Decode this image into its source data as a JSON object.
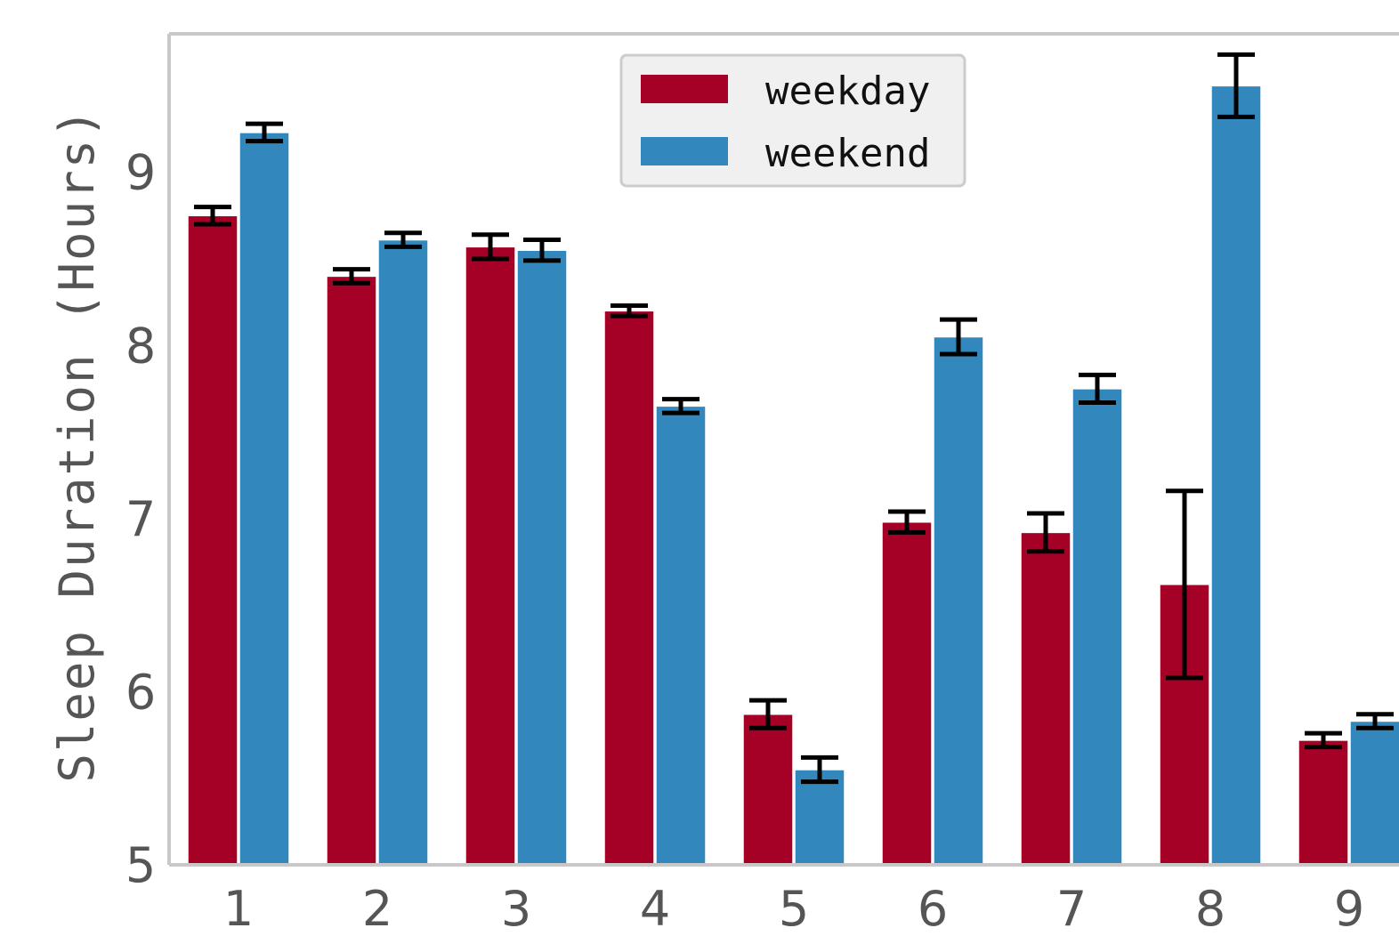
{
  "chart_data": {
    "type": "bar",
    "title": "",
    "xlabel": "",
    "ylabel": "Sleep Duration (Hours)",
    "categories": [
      "1",
      "2",
      "3",
      "4",
      "5",
      "6",
      "7",
      "8",
      "9"
    ],
    "yticks": [
      "5",
      "6",
      "7",
      "8",
      "9"
    ],
    "ylim": [
      5,
      9.8
    ],
    "grid": false,
    "legend_position": "top-center",
    "series": [
      {
        "name": "weekday",
        "color": "#a50026",
        "values": [
          8.75,
          8.4,
          8.57,
          8.2,
          5.87,
          6.98,
          6.92,
          6.62,
          5.72
        ],
        "errors": [
          0.05,
          0.04,
          0.07,
          0.03,
          0.08,
          0.06,
          0.11,
          0.54,
          0.04
        ]
      },
      {
        "name": "weekend",
        "color": "#3288bd",
        "values": [
          9.23,
          8.61,
          8.55,
          7.65,
          5.55,
          8.05,
          7.75,
          9.5,
          5.83
        ],
        "errors": [
          0.05,
          0.04,
          0.06,
          0.04,
          0.07,
          0.1,
          0.08,
          0.18,
          0.04
        ]
      }
    ]
  }
}
